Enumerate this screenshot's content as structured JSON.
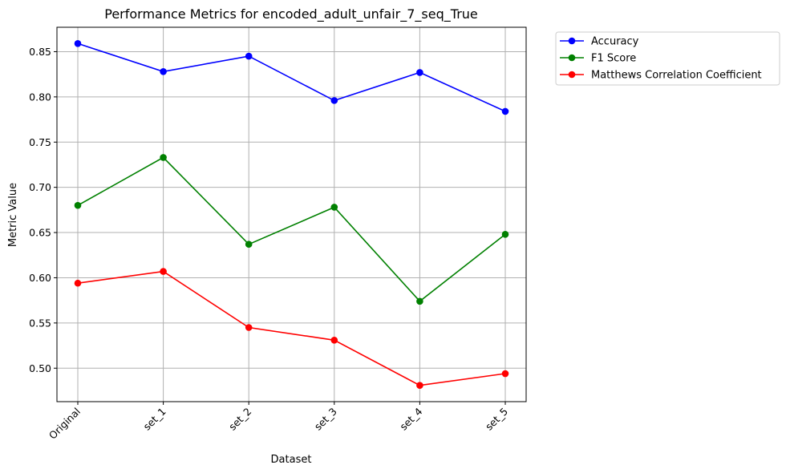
{
  "chart_data": {
    "type": "line",
    "title": "Performance Metrics for encoded_adult_unfair_7_seq_True",
    "xlabel": "Dataset",
    "ylabel": "Metric Value",
    "categories": [
      "Original",
      "set_1",
      "set_2",
      "set_3",
      "set_4",
      "set_5"
    ],
    "ylim": [
      0.463,
      0.877
    ],
    "yticks": [
      0.5,
      0.55,
      0.6,
      0.65,
      0.7,
      0.75,
      0.8,
      0.85
    ],
    "ytick_labels": [
      "0.50",
      "0.55",
      "0.60",
      "0.65",
      "0.70",
      "0.75",
      "0.80",
      "0.85"
    ],
    "grid": true,
    "legend_position": "outside-top-right",
    "series": [
      {
        "name": "Accuracy",
        "color": "#0000ff",
        "values": [
          0.859,
          0.828,
          0.845,
          0.796,
          0.827,
          0.784
        ]
      },
      {
        "name": "F1 Score",
        "color": "#008000",
        "values": [
          0.68,
          0.733,
          0.637,
          0.678,
          0.574,
          0.648
        ]
      },
      {
        "name": "Matthews Correlation Coefficient",
        "color": "#ff0000",
        "values": [
          0.594,
          0.607,
          0.545,
          0.531,
          0.481,
          0.494
        ]
      }
    ]
  }
}
